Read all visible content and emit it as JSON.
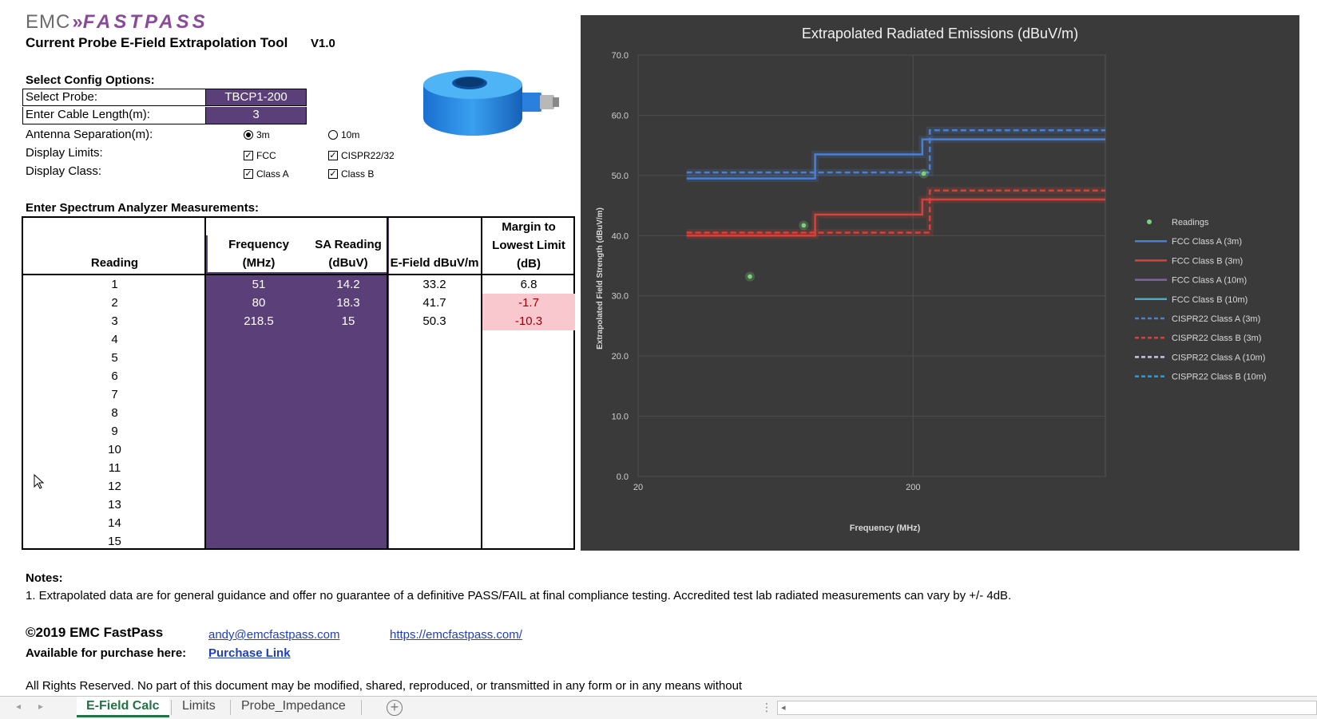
{
  "header": {
    "logo_emc": "EMC",
    "logo_chevrons": "»",
    "logo_fastpass": "FASTPASS",
    "title": "Current Probe E-Field Extrapolation Tool",
    "version": "V1.0"
  },
  "config": {
    "section_label": "Select Config Options:",
    "probe_label": "Select Probe:",
    "probe_value": "TBCP1-200",
    "cable_label": "Enter Cable Length(m):",
    "cable_value": "3",
    "antenna_label": "Antenna Separation(m):",
    "antenna_opt1": "3m",
    "antenna_opt2": "10m",
    "limits_label": "Display Limits:",
    "limits_opt1": "FCC",
    "limits_opt2": "CISPR22/32",
    "class_label": "Display Class:",
    "class_opt1": "Class A",
    "class_opt2": "Class B"
  },
  "measurements": {
    "section_label": "Enter Spectrum Analyzer Measurements:",
    "headers": {
      "reading": "Reading",
      "freq_l1": "Frequency",
      "freq_l2": "(MHz)",
      "sa_l1": "SA Reading",
      "sa_l2": "(dBuV)",
      "efield": "E-Field dBuV/m",
      "margin_l1": "Margin to",
      "margin_l2": "Lowest Limit",
      "margin_l3": "(dB)"
    },
    "rows": [
      {
        "reading": "1",
        "freq": "51",
        "sa": "14.2",
        "efield": "33.2",
        "margin": "6.8",
        "neg": false
      },
      {
        "reading": "2",
        "freq": "80",
        "sa": "18.3",
        "efield": "41.7",
        "margin": "-1.7",
        "neg": true
      },
      {
        "reading": "3",
        "freq": "218.5",
        "sa": "15",
        "efield": "50.3",
        "margin": "-10.3",
        "neg": true
      },
      {
        "reading": "4",
        "freq": "",
        "sa": "",
        "efield": "",
        "margin": "",
        "neg": false
      },
      {
        "reading": "5",
        "freq": "",
        "sa": "",
        "efield": "",
        "margin": "",
        "neg": false
      },
      {
        "reading": "6",
        "freq": "",
        "sa": "",
        "efield": "",
        "margin": "",
        "neg": false
      },
      {
        "reading": "7",
        "freq": "",
        "sa": "",
        "efield": "",
        "margin": "",
        "neg": false
      },
      {
        "reading": "8",
        "freq": "",
        "sa": "",
        "efield": "",
        "margin": "",
        "neg": false
      },
      {
        "reading": "9",
        "freq": "",
        "sa": "",
        "efield": "",
        "margin": "",
        "neg": false
      },
      {
        "reading": "10",
        "freq": "",
        "sa": "",
        "efield": "",
        "margin": "",
        "neg": false
      },
      {
        "reading": "11",
        "freq": "",
        "sa": "",
        "efield": "",
        "margin": "",
        "neg": false
      },
      {
        "reading": "12",
        "freq": "",
        "sa": "",
        "efield": "",
        "margin": "",
        "neg": false
      },
      {
        "reading": "13",
        "freq": "",
        "sa": "",
        "efield": "",
        "margin": "",
        "neg": false
      },
      {
        "reading": "14",
        "freq": "",
        "sa": "",
        "efield": "",
        "margin": "",
        "neg": false
      },
      {
        "reading": "15",
        "freq": "",
        "sa": "",
        "efield": "",
        "margin": "",
        "neg": false
      }
    ]
  },
  "chart_data": {
    "type": "line",
    "title": "Extrapolated Radiated Emissions (dBuV/m)",
    "xlabel": "Frequency (MHz)",
    "ylabel": "Extrapolated Field Strength (dBuV/m)",
    "xscale": "log",
    "xlim": [
      20,
      1000
    ],
    "ylim": [
      0,
      70
    ],
    "x_ticks": [
      "20",
      "200"
    ],
    "x_tick_values": [
      20,
      200
    ],
    "y_ticks": [
      "0.0",
      "10.0",
      "20.0",
      "30.0",
      "40.0",
      "50.0",
      "60.0",
      "70.0"
    ],
    "y_tick_values": [
      0,
      10,
      20,
      30,
      40,
      50,
      60,
      70
    ],
    "legend_position": "right",
    "readings": {
      "name": "Readings",
      "x": [
        51,
        80,
        218.5
      ],
      "y": [
        33.2,
        41.7,
        50.3
      ],
      "color": "#7ed17e"
    },
    "series": [
      {
        "name": "FCC Class A (3m)",
        "color": "#4a7fd4",
        "dashed": false,
        "x": [
          30,
          88,
          88,
          216,
          216,
          960,
          960,
          1000
        ],
        "y": [
          49.5,
          49.5,
          53.5,
          53.5,
          56.0,
          56.0,
          56.0,
          56.0
        ]
      },
      {
        "name": "FCC Class B (3m)",
        "color": "#d9403a",
        "dashed": false,
        "x": [
          30,
          88,
          88,
          216,
          216,
          1000
        ],
        "y": [
          40.0,
          40.0,
          43.5,
          43.5,
          46.0,
          46.0
        ]
      },
      {
        "name": "FCC Class A (10m)",
        "color": "#8064a2",
        "dashed": false,
        "x": [],
        "y": []
      },
      {
        "name": "FCC Class B (10m)",
        "color": "#4bacc6",
        "dashed": false,
        "x": [],
        "y": []
      },
      {
        "name": "CISPR22 Class A (3m)",
        "color": "#4a7fd4",
        "dashed": true,
        "x": [
          30,
          230,
          230,
          1000
        ],
        "y": [
          50.5,
          50.5,
          57.5,
          57.5
        ]
      },
      {
        "name": "CISPR22 Class B (3m)",
        "color": "#d9403a",
        "dashed": true,
        "x": [
          30,
          230,
          230,
          1000
        ],
        "y": [
          40.5,
          40.5,
          47.5,
          47.5
        ]
      },
      {
        "name": "CISPR22 Class A (10m)",
        "color": "#c9c3e6",
        "dashed": true,
        "x": [],
        "y": []
      },
      {
        "name": "CISPR22 Class B (10m)",
        "color": "#2e9bd6",
        "dashed": true,
        "x": [],
        "y": []
      }
    ]
  },
  "notes": {
    "title": "Notes:",
    "note1": "1. Extrapolated data are for general guidance and offer no guarantee of a definitive PASS/FAIL at final compliance testing. Accredited test lab radiated measurements can vary by +/- 4dB."
  },
  "footer": {
    "copyright": "©2019 EMC FastPass",
    "email": "andy@emcfastpass.com",
    "website": "https://emcfastpass.com/",
    "available_label": "Available for purchase here:",
    "purchase_link": "Purchase Link",
    "rights": "All Rights Reserved.  No part of this document may be modified, shared, reproduced, or transmitted in any form or in any means without"
  },
  "tabs": [
    {
      "label": "E-Field Calc",
      "active": true
    },
    {
      "label": "Limits",
      "active": false
    },
    {
      "label": "Probe_Impedance",
      "active": false
    }
  ],
  "tab_add": "+",
  "tab_nav_prev": "◂",
  "tab_nav_next": "▸",
  "scroll_left": "◂",
  "scroll_dots": "⋮"
}
